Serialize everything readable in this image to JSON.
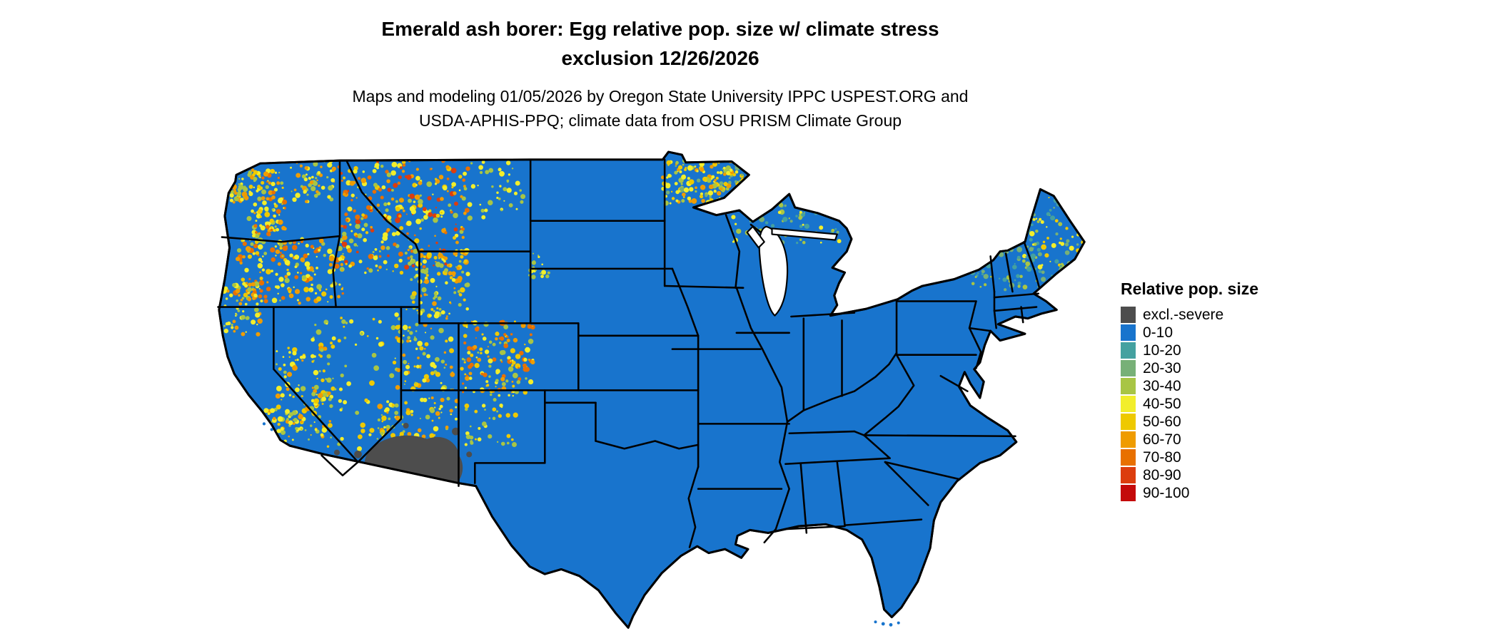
{
  "title": {
    "line1": "Emerald ash borer: Egg relative pop. size w/ climate stress",
    "line2": "exclusion 12/26/2026"
  },
  "subtitle": {
    "line1": "Maps and modeling 01/05/2026 by Oregon State University IPPC USPEST.ORG and",
    "line2": "USDA-APHIS-PPQ; climate data from OSU PRISM Climate Group"
  },
  "legend": {
    "title": "Relative pop. size",
    "entries": [
      {
        "label": "excl.-severe",
        "color": "#4d4d4d"
      },
      {
        "label": "0-10",
        "color": "#1874cd"
      },
      {
        "label": "10-20",
        "color": "#44a1a0"
      },
      {
        "label": "20-30",
        "color": "#77b077"
      },
      {
        "label": "30-40",
        "color": "#a8c545"
      },
      {
        "label": "40-50",
        "color": "#f2ee2b"
      },
      {
        "label": "50-60",
        "color": "#eec900"
      },
      {
        "label": "60-70",
        "color": "#ef9c00"
      },
      {
        "label": "70-80",
        "color": "#e87000"
      },
      {
        "label": "80-90",
        "color": "#dc3d0e"
      },
      {
        "label": "90-100",
        "color": "#c40a0a"
      }
    ]
  },
  "map": {
    "base_fill": "#1874cd"
  }
}
